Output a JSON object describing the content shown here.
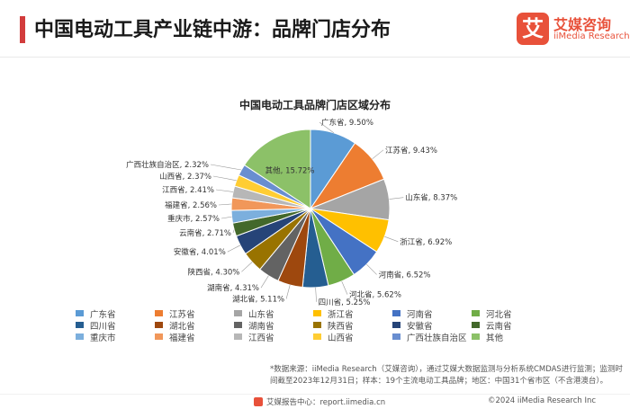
{
  "header": {
    "title": "中国电动工具产业链中游：品牌门店分布",
    "logo_mark": "艾",
    "logo_cn": "艾媒咨询",
    "logo_en": "iiMedia Research"
  },
  "chart_data": {
    "type": "pie",
    "title": "中国电动工具品牌门店区域分布",
    "unit": "%",
    "start": "12 o'clock, clockwise",
    "slices": [
      {
        "name": "广东省",
        "value": 9.5,
        "label": "广东省, 9.50%",
        "color": "#5b9bd5"
      },
      {
        "name": "江苏省",
        "value": 9.43,
        "label": "江苏省, 9.43%",
        "color": "#ed7d31"
      },
      {
        "name": "山东省",
        "value": 8.37,
        "label": "山东省, 8.37%",
        "color": "#a5a5a5"
      },
      {
        "name": "浙江省",
        "value": 6.92,
        "label": "浙江省, 6.92%",
        "color": "#ffc000"
      },
      {
        "name": "河南省",
        "value": 6.52,
        "label": "河南省, 6.52%",
        "color": "#4472c4"
      },
      {
        "name": "河北省",
        "value": 5.62,
        "label": "河北省, 5.62%",
        "color": "#70ad47"
      },
      {
        "name": "四川省",
        "value": 5.25,
        "label": "四川省, 5.25%",
        "color": "#255e91"
      },
      {
        "name": "湖北省",
        "value": 5.11,
        "label": "湖北省, 5.11%",
        "color": "#9e480e"
      },
      {
        "name": "湖南省",
        "value": 4.31,
        "label": "湖南省, 4.31%",
        "color": "#636363"
      },
      {
        "name": "陕西省",
        "value": 4.3,
        "label": "陕西省, 4.30%",
        "color": "#997300"
      },
      {
        "name": "安徽省",
        "value": 4.01,
        "label": "安徽省, 4.01%",
        "color": "#264478"
      },
      {
        "name": "云南省",
        "value": 2.71,
        "label": "云南省, 2.71%",
        "color": "#43682b"
      },
      {
        "name": "重庆市",
        "value": 2.57,
        "label": "重庆市, 2.57%",
        "color": "#7cafdd"
      },
      {
        "name": "福建省",
        "value": 2.56,
        "label": "福建省, 2.56%",
        "color": "#f1975a"
      },
      {
        "name": "江西省",
        "value": 2.41,
        "label": "江西省, 2.41%",
        "color": "#b7b7b7"
      },
      {
        "name": "山西省",
        "value": 2.37,
        "label": "山西省, 2.37%",
        "color": "#ffcd33"
      },
      {
        "name": "广西壮族自治区",
        "value": 2.32,
        "label": "广西壮族自治区, 2.32%",
        "color": "#698ed0"
      },
      {
        "name": "其他",
        "value": 15.72,
        "label": "其他, 15.72%",
        "color": "#8cc168"
      }
    ],
    "legend_position": "bottom"
  },
  "note": {
    "line1": "*数据来源：iiMedia Research（艾媒咨询），通过艾媒大数据监测与分析系统CMDAS进行监测；监测时",
    "line2": "间截至2023年12月31日；样本：19个主流电动工具品牌；地区：中国31个省市区（不含港澳台）。"
  },
  "footer": {
    "left": "艾媒报告中心：report.iimedia.cn",
    "right": "©2024  iiMedia Research  Inc"
  }
}
